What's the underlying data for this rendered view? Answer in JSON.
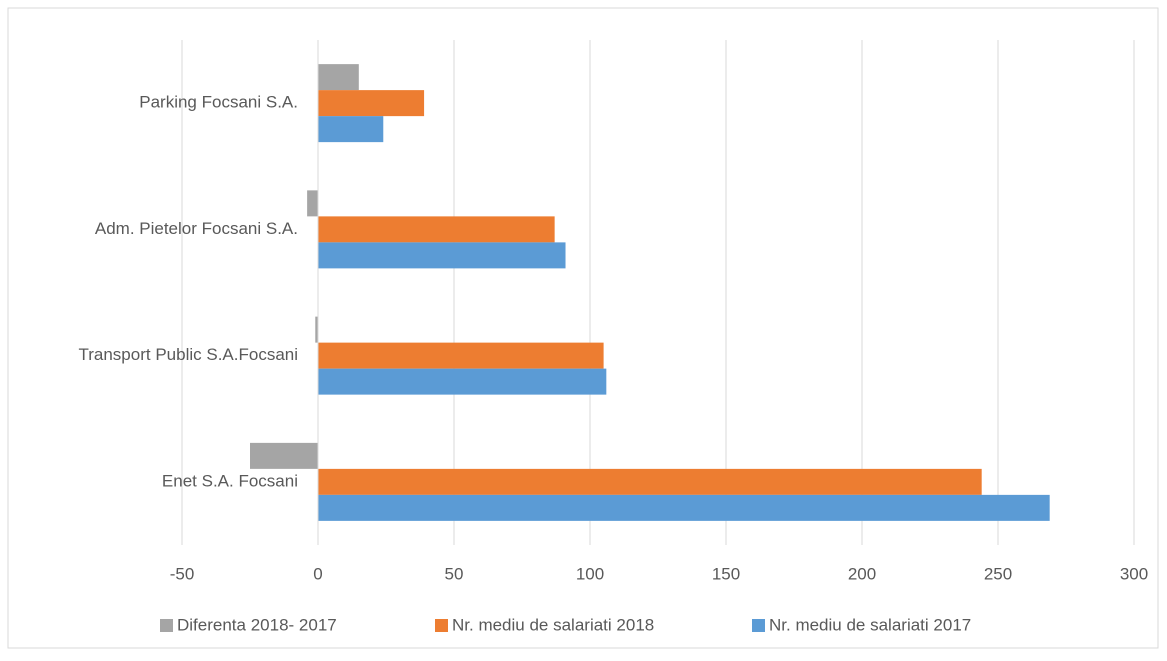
{
  "chart_data": {
    "type": "hbar",
    "categories": [
      "Parking Focsani S.A.",
      "Adm. Pietelor Focsani S.A.",
      "Transport Public S.A.Focsani",
      "Enet S.A. Focsani"
    ],
    "series": [
      {
        "name": "Diferenta 2018- 2017",
        "color": "#a5a5a5",
        "values": [
          15,
          -4,
          -1,
          -25
        ]
      },
      {
        "name": "Nr. mediu de salariati 2018",
        "color": "#ed7d31",
        "values": [
          39,
          87,
          105,
          244
        ]
      },
      {
        "name": "Nr. mediu de salariati 2017",
        "color": "#5b9bd5",
        "values": [
          24,
          91,
          106,
          269
        ]
      }
    ],
    "xlim": [
      -50,
      300
    ],
    "xticks": [
      -50,
      0,
      50,
      100,
      150,
      200,
      250,
      300
    ],
    "grid": true,
    "legend": "bottom"
  }
}
